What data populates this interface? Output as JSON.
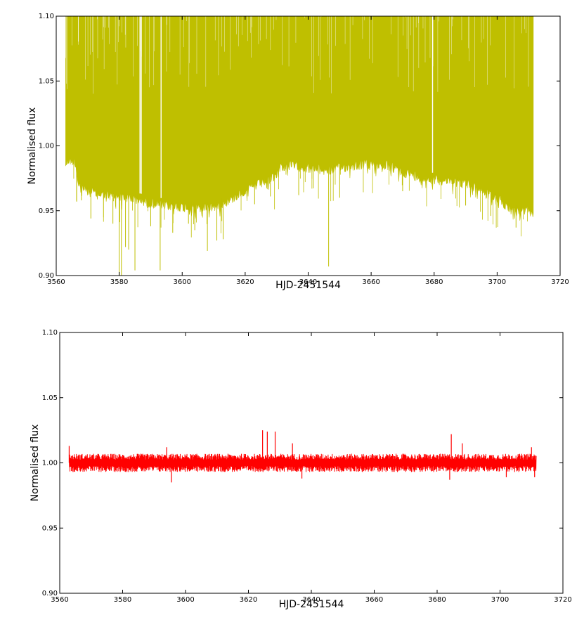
{
  "chart_data": [
    {
      "type": "line",
      "title": "",
      "xlabel": "HJD-2451544",
      "ylabel": "Normalised flux",
      "xlim": [
        3560,
        3720
      ],
      "ylim": [
        0.9,
        1.1
      ],
      "xticks": [
        3560,
        3580,
        3600,
        3620,
        3640,
        3660,
        3680,
        3700,
        3720
      ],
      "yticks": [
        0.9,
        0.95,
        1.0,
        1.05,
        1.1
      ],
      "xtick_labels": [
        "3560",
        "3580",
        "3600",
        "3620",
        "3640",
        "3660",
        "3680",
        "3700",
        "3720"
      ],
      "ytick_labels": [
        "0.90",
        "0.95",
        "1.00",
        "1.05",
        "1.10"
      ],
      "grid": false,
      "series": [
        {
          "color": "#bfbf00",
          "x_range": [
            3563,
            3711.5
          ],
          "lower_envelope": {
            "x": [
              3563,
              3564,
              3566,
              3567,
              3570,
              3575,
              3580,
              3585,
              3587,
              3590,
              3595,
              3600,
              3605,
              3610,
              3615,
              3620,
              3625,
              3629,
              3630,
              3631,
              3635,
              3640,
              3645,
              3650,
              3655,
              3660,
              3665,
              3670,
              3675,
              3680,
              3685,
              3690,
              3695,
              3700,
              3705,
              3711
            ],
            "y": [
              0.99,
              0.993,
              0.992,
              0.975,
              0.969,
              0.966,
              0.965,
              0.963,
              0.962,
              0.96,
              0.958,
              0.957,
              0.956,
              0.957,
              0.962,
              0.97,
              0.975,
              0.98,
              0.983,
              0.988,
              0.989,
              0.987,
              0.985,
              0.987,
              0.989,
              0.99,
              0.989,
              0.984,
              0.98,
              0.978,
              0.977,
              0.975,
              0.97,
              0.963,
              0.955,
              0.953
            ]
          },
          "upper_value": 1.1,
          "dips": [
            {
              "x": 3566.5,
              "y": 0.957
            },
            {
              "x": 3568,
              "y": 0.958
            },
            {
              "x": 3571,
              "y": 0.944
            },
            {
              "x": 3578,
              "y": 0.94
            },
            {
              "x": 3580,
              "y": 0.9
            },
            {
              "x": 3580.7,
              "y": 0.9
            },
            {
              "x": 3582,
              "y": 0.922
            },
            {
              "x": 3583,
              "y": 0.92
            },
            {
              "x": 3585,
              "y": 0.904
            },
            {
              "x": 3590,
              "y": 0.938
            },
            {
              "x": 3593,
              "y": 0.904
            },
            {
              "x": 3597,
              "y": 0.933
            },
            {
              "x": 3602,
              "y": 0.94
            },
            {
              "x": 3604,
              "y": 0.935
            },
            {
              "x": 3608,
              "y": 0.919
            },
            {
              "x": 3611,
              "y": 0.927
            },
            {
              "x": 3613,
              "y": 0.928
            },
            {
              "x": 3623,
              "y": 0.955
            },
            {
              "x": 3628,
              "y": 0.961
            },
            {
              "x": 3637,
              "y": 0.962
            },
            {
              "x": 3646.5,
              "y": 0.907
            },
            {
              "x": 3650,
              "y": 0.96
            },
            {
              "x": 3670,
              "y": 0.965
            },
            {
              "x": 3690,
              "y": 0.954
            },
            {
              "x": 3698,
              "y": 0.946
            },
            {
              "x": 3706,
              "y": 0.937
            }
          ],
          "gaps_x": [
            3586.6,
            3587.0,
            3593.3,
            3679.5
          ]
        }
      ]
    },
    {
      "type": "line",
      "title": "",
      "xlabel": "HJD-2451544",
      "ylabel": "Normalised flux",
      "xlim": [
        3560,
        3720
      ],
      "ylim": [
        0.9,
        1.1
      ],
      "xticks": [
        3560,
        3580,
        3600,
        3620,
        3640,
        3660,
        3680,
        3700,
        3720
      ],
      "yticks": [
        0.9,
        0.95,
        1.0,
        1.05,
        1.1
      ],
      "xtick_labels": [
        "3560",
        "3580",
        "3600",
        "3620",
        "3640",
        "3660",
        "3680",
        "3700",
        "3720"
      ],
      "ytick_labels": [
        "0.90",
        "0.95",
        "1.00",
        "1.05",
        "1.10"
      ],
      "grid": false,
      "series": [
        {
          "color": "#ff0000",
          "x_range": [
            3563,
            3711.5
          ],
          "center": 1.0,
          "half_amplitude": 0.007,
          "peaks": [
            {
              "x": 3563,
              "y": 1.013
            },
            {
              "x": 3594,
              "y": 1.012
            },
            {
              "x": 3624.5,
              "y": 1.025
            },
            {
              "x": 3626,
              "y": 1.024
            },
            {
              "x": 3628.5,
              "y": 1.024
            },
            {
              "x": 3634,
              "y": 1.015
            },
            {
              "x": 3684.5,
              "y": 1.022
            },
            {
              "x": 3688,
              "y": 1.015
            },
            {
              "x": 3710,
              "y": 1.012
            }
          ],
          "troughs": [
            {
              "x": 3595.5,
              "y": 0.985
            },
            {
              "x": 3637,
              "y": 0.988
            },
            {
              "x": 3684,
              "y": 0.987
            },
            {
              "x": 3702,
              "y": 0.989
            },
            {
              "x": 3711,
              "y": 0.989
            }
          ]
        }
      ]
    }
  ]
}
